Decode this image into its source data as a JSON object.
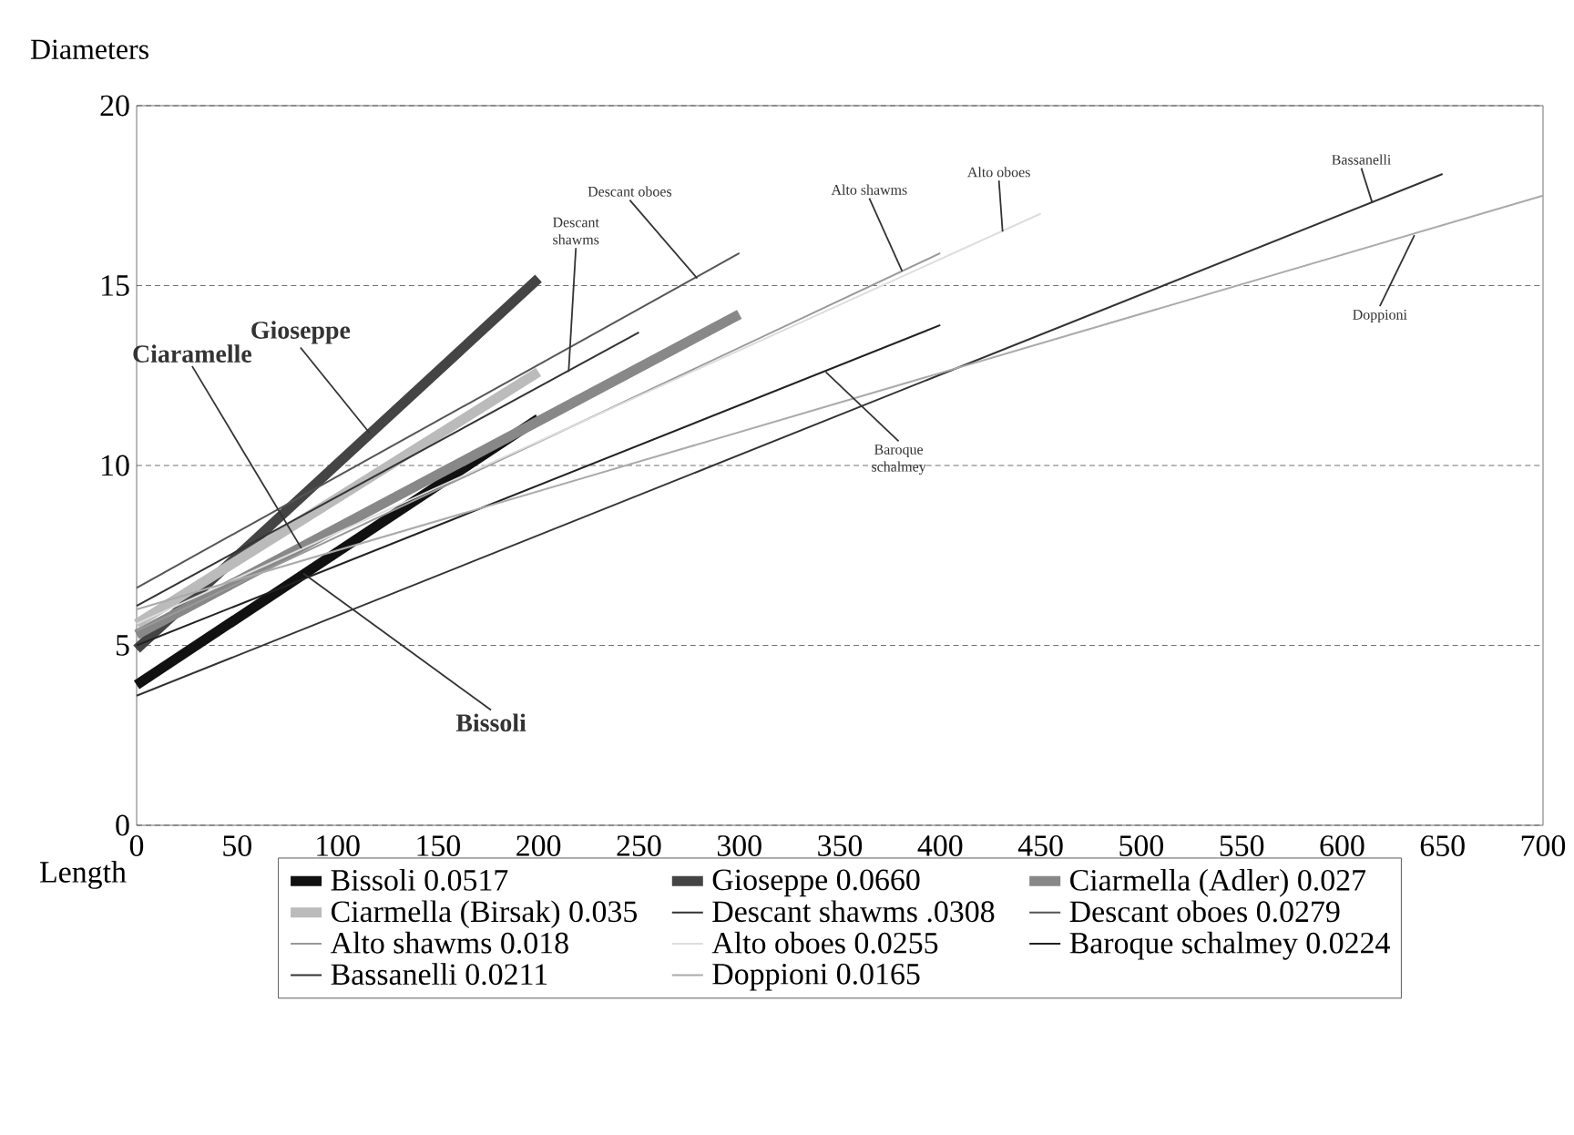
{
  "chart_data": {
    "type": "line",
    "xlabel": "Length",
    "ylabel": "Diameters",
    "xlim": [
      0,
      700
    ],
    "ylim": [
      0,
      20
    ],
    "xticks": [
      0,
      50,
      100,
      150,
      200,
      250,
      300,
      350,
      400,
      450,
      500,
      550,
      600,
      650,
      700
    ],
    "yticks": [
      0,
      5,
      10,
      15,
      20
    ],
    "grid": "y",
    "legend": "bottom",
    "marker": "none",
    "line_style": "solid",
    "series": [
      {
        "name": "Bissoli 0.0517",
        "color": "#111111",
        "x": [
          0,
          200
        ],
        "values": [
          3.9,
          11.3
        ]
      },
      {
        "name": "Gioseppe 0.0660",
        "color": "#444444",
        "x": [
          0,
          200
        ],
        "values": [
          4.9,
          15.2
        ]
      },
      {
        "name": "Ciarmella (Adler) 0.027",
        "color": "#888888",
        "x": [
          0,
          300
        ],
        "values": [
          5.3,
          14.2
        ]
      },
      {
        "name": "Ciarmella (Birsak) 0.035",
        "color": "#bbbbbb",
        "x": [
          0,
          200
        ],
        "values": [
          5.6,
          12.6
        ]
      },
      {
        "name": "Descant shawms .0308",
        "color": "#333333",
        "x": [
          0,
          250
        ],
        "values": [
          6.1,
          13.7
        ]
      },
      {
        "name": "Descant oboes 0.0279",
        "color": "#555555",
        "x": [
          0,
          300
        ],
        "values": [
          6.6,
          15.9
        ]
      },
      {
        "name": "Alto shawms 0.018",
        "color": "#999999",
        "x": [
          0,
          400
        ],
        "values": [
          5.4,
          15.9
        ]
      },
      {
        "name": "Alto oboes 0.0255",
        "color": "#dddddd",
        "x": [
          0,
          450
        ],
        "values": [
          5.6,
          17.0
        ]
      },
      {
        "name": "Baroque schalmey 0.0224",
        "color": "#222222",
        "x": [
          0,
          400
        ],
        "values": [
          5.0,
          13.9
        ]
      },
      {
        "name": "Bassanelli 0.0211",
        "color": "#333333",
        "x": [
          0,
          650
        ],
        "values": [
          3.6,
          18.1
        ]
      },
      {
        "name": "Doppioni 0.0165",
        "color": "#aaaaaa",
        "x": [
          0,
          700
        ],
        "values": [
          6.0,
          17.5
        ]
      }
    ],
    "annotations": [
      {
        "text": "Ciaramelle",
        "x": 82,
        "y": 7.7
      },
      {
        "text": "Gioseppe",
        "x": 116,
        "y": 10.9
      },
      {
        "text": "Bissoli",
        "x": 83,
        "y": 7.0
      },
      {
        "text": "Descant shawms",
        "x": 215,
        "y": 12.6
      },
      {
        "text": "Descant oboes",
        "x": 279,
        "y": 15.2
      },
      {
        "text": "Alto shawms",
        "x": 381,
        "y": 15.4
      },
      {
        "text": "Alto oboes",
        "x": 431,
        "y": 16.5
      },
      {
        "text": "Bassanelli",
        "x": 615,
        "y": 17.3
      },
      {
        "text": "Doppioni",
        "x": 636,
        "y": 16.4
      },
      {
        "text": "Baroque schalmey",
        "x": 343,
        "y": 12.6
      }
    ]
  }
}
